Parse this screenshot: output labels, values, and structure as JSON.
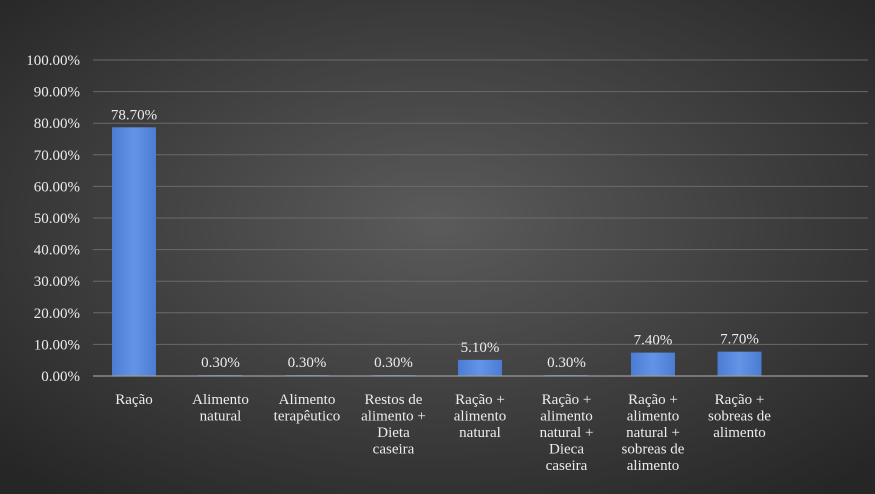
{
  "chart_data": {
    "type": "bar",
    "categories": [
      [
        "Ração"
      ],
      [
        "Alimento",
        "natural"
      ],
      [
        "Alimento",
        "terapêutico"
      ],
      [
        "Restos de",
        "alimento +",
        "Dieta",
        "caseira"
      ],
      [
        "Ração +",
        "alimento",
        "natural"
      ],
      [
        "Ração +",
        "alimento",
        "natural +",
        "Dieca",
        "caseira"
      ],
      [
        "Ração +",
        "alimento",
        "natural +",
        "sobreas de",
        "alimento"
      ],
      [
        "Ração +",
        "sobreas de",
        "alimento"
      ]
    ],
    "values": [
      78.7,
      0.3,
      0.3,
      0.3,
      5.1,
      0.3,
      7.4,
      7.7
    ],
    "data_labels": [
      "78.70%",
      "0.30%",
      "0.30%",
      "0.30%",
      "5.10%",
      "0.30%",
      "7.40%",
      "7.70%"
    ],
    "y_ticks": [
      0,
      10,
      20,
      30,
      40,
      50,
      60,
      70,
      80,
      90,
      100
    ],
    "y_tick_labels": [
      "0.00%",
      "10.00%",
      "20.00%",
      "30.00%",
      "40.00%",
      "50.00%",
      "60.00%",
      "70.00%",
      "80.00%",
      "90.00%",
      "100.00%"
    ],
    "ylim": [
      0,
      100
    ],
    "grid": true,
    "legend": "none",
    "title": "",
    "xlabel": "",
    "ylabel": "",
    "colors": {
      "bar": "#4a7cd3",
      "bar_highlight": "#6394e6",
      "grid": "#6a6a6a",
      "axis": "#9a9a9a",
      "text": "#ececec",
      "background_center": "#5b5b5b",
      "background_edge": "#262626"
    }
  }
}
